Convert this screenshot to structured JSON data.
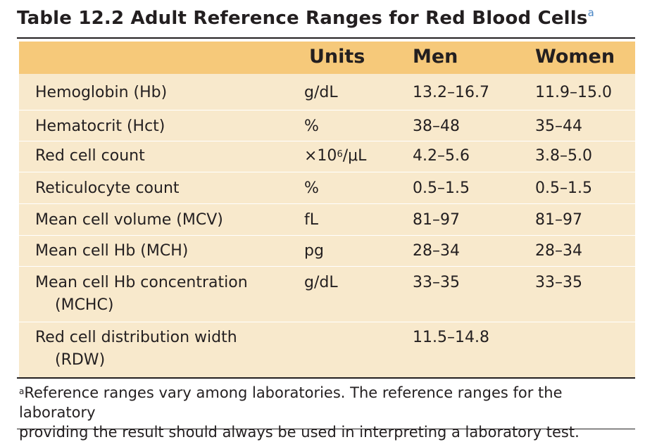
{
  "title": {
    "text": "Table 12.2 Adult Reference Ranges for Red Blood Cells",
    "superscript": "a"
  },
  "header": {
    "col1": "",
    "units": "Units",
    "men": "Men",
    "women": "Women"
  },
  "rows": [
    {
      "name_line1": "Hemoglobin (Hb)",
      "name_line2": "",
      "units": "g/dL",
      "men": "13.2–16.7",
      "women": "11.9–15.0"
    },
    {
      "name_line1": "Hematocrit (Hct)",
      "name_line2": "",
      "units": "%",
      "men": "38–48",
      "women": "35–44"
    },
    {
      "name_line1": "Red cell count",
      "name_line2": "",
      "units_prefix": "×10",
      "units_exp": "6",
      "units_suffix": "/μL",
      "men": "4.2–5.6",
      "women": "3.8–5.0"
    },
    {
      "name_line1": "Reticulocyte count",
      "name_line2": "",
      "units": "%",
      "men": "0.5–1.5",
      "women": "0.5–1.5"
    },
    {
      "name_line1": "Mean cell volume (MCV)",
      "name_line2": "",
      "units": "fL",
      "men": "81–97",
      "women": "81–97"
    },
    {
      "name_line1": "Mean cell Hb (MCH)",
      "name_line2": "",
      "units": "pg",
      "men": "28–34",
      "women": "28–34"
    },
    {
      "name_line1": "Mean cell Hb concentration",
      "name_line2": "(MCHC)",
      "units": "g/dL",
      "men": "33–35",
      "women": "33–35"
    },
    {
      "name_line1": "Red cell distribution width",
      "name_line2": "(RDW)",
      "units": "",
      "men": "11.5–14.8",
      "women": ""
    }
  ],
  "footnote": {
    "marker": "a",
    "line1": "Reference ranges vary among laboratories. The reference ranges for the laboratory",
    "line2": "providing the result should always be used in interpreting a laboratory test."
  },
  "colors": {
    "header_bg": "#f6c97a",
    "body_bg": "#f8e9cc",
    "superscript": "#4a86c5"
  }
}
